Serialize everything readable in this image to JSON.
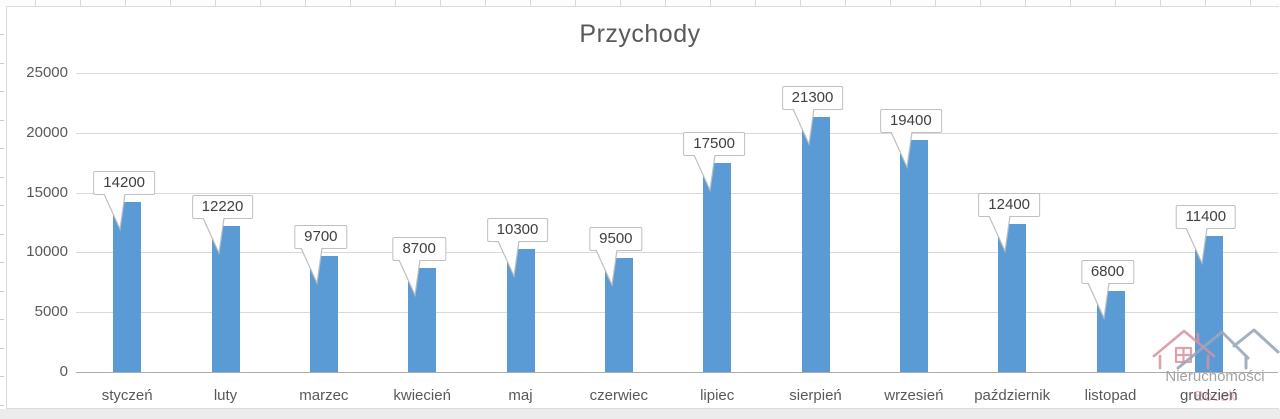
{
  "chart_data": {
    "type": "bar",
    "title": "Przychody",
    "categories": [
      "styczeń",
      "luty",
      "marzec",
      "kwiecień",
      "maj",
      "czerwiec",
      "lipiec",
      "sierpień",
      "wrzesień",
      "październik",
      "listopad",
      "grudzień"
    ],
    "values": [
      14200,
      12220,
      9700,
      8700,
      10300,
      9500,
      17500,
      21300,
      19400,
      12400,
      6800,
      11400
    ],
    "data_labels": [
      "14200",
      "12220",
      "9700",
      "8700",
      "10300",
      "9500",
      "17500",
      "21300",
      "19400",
      "12400",
      "6800",
      "11400"
    ],
    "xlabel": "",
    "ylabel": "",
    "ylim": [
      0,
      25000
    ],
    "yticks": [
      0,
      5000,
      10000,
      15000,
      20000,
      25000
    ],
    "grid": true,
    "legend": "none",
    "label_style": "callout",
    "bar_color": "#5b9bd5",
    "grid_color": "#d9d9d9",
    "axis_color": "#ababab",
    "text_color": "#595959",
    "callout_border_color": "#bfbfbf"
  },
  "watermark": {
    "brand_text": "Nieruchomości",
    "overlay_text": "Bocek",
    "icon": "twin-house-roofs-icon",
    "colors": {
      "pink": "#d9919e",
      "gray_blue": "#9aa7bc"
    }
  }
}
